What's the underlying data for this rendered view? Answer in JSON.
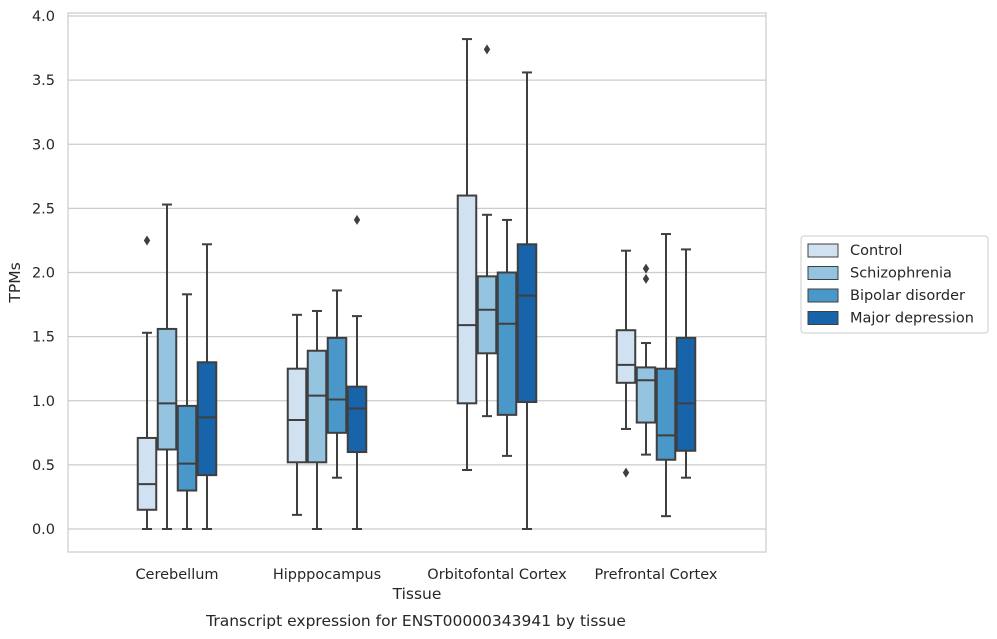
{
  "chart_data": {
    "type": "boxplot",
    "caption": "Transcript expression for ENST00000343941 by tissue",
    "xlabel": "Tissue",
    "ylabel": "TPMs",
    "ylim": [
      -0.18,
      4.02
    ],
    "yticks": [
      0.0,
      0.5,
      1.0,
      1.5,
      2.0,
      2.5,
      3.0,
      3.5,
      4.0
    ],
    "ytick_labels": [
      "0.0",
      "0.5",
      "1.0",
      "1.5",
      "2.0",
      "2.5",
      "3.0",
      "3.5",
      "4.0"
    ],
    "grid": true,
    "legend_position": "right",
    "categories": [
      "Cerebellum",
      "Hipppocampus",
      "Orbitofontal Cortex",
      "Prefrontal Cortex"
    ],
    "series": [
      {
        "name": "Control",
        "color": "#d0e1f2",
        "boxes": [
          {
            "whislo": 0.0,
            "q1": 0.15,
            "med": 0.35,
            "q3": 0.71,
            "whishi": 1.53,
            "fliers": [
              2.25
            ]
          },
          {
            "whislo": 0.11,
            "q1": 0.52,
            "med": 0.85,
            "q3": 1.25,
            "whishi": 1.67,
            "fliers": []
          },
          {
            "whislo": 0.46,
            "q1": 0.98,
            "med": 1.59,
            "q3": 2.6,
            "whishi": 3.82,
            "fliers": []
          },
          {
            "whislo": 0.78,
            "q1": 1.14,
            "med": 1.28,
            "q3": 1.55,
            "whishi": 2.17,
            "fliers": [
              0.44
            ]
          }
        ]
      },
      {
        "name": "Schizophrenia",
        "color": "#94c4df",
        "boxes": [
          {
            "whislo": 0.0,
            "q1": 0.62,
            "med": 0.98,
            "q3": 1.56,
            "whishi": 2.53,
            "fliers": []
          },
          {
            "whislo": 0.0,
            "q1": 0.52,
            "med": 1.04,
            "q3": 1.39,
            "whishi": 1.7,
            "fliers": []
          },
          {
            "whislo": 0.88,
            "q1": 1.37,
            "med": 1.71,
            "q3": 1.97,
            "whishi": 2.45,
            "fliers": [
              3.74
            ]
          },
          {
            "whislo": 0.58,
            "q1": 0.83,
            "med": 1.16,
            "q3": 1.26,
            "whishi": 1.45,
            "fliers": [
              2.03,
              1.95
            ]
          }
        ]
      },
      {
        "name": "Bipolar disorder",
        "color": "#4a98c9",
        "boxes": [
          {
            "whislo": 0.0,
            "q1": 0.3,
            "med": 0.51,
            "q3": 0.96,
            "whishi": 1.83,
            "fliers": []
          },
          {
            "whislo": 0.4,
            "q1": 0.75,
            "med": 1.01,
            "q3": 1.49,
            "whishi": 1.86,
            "fliers": []
          },
          {
            "whislo": 0.57,
            "q1": 0.89,
            "med": 1.6,
            "q3": 2.0,
            "whishi": 2.41,
            "fliers": []
          },
          {
            "whislo": 0.1,
            "q1": 0.54,
            "med": 0.73,
            "q3": 1.25,
            "whishi": 2.3,
            "fliers": []
          }
        ]
      },
      {
        "name": "Major depression",
        "color": "#1764ab",
        "boxes": [
          {
            "whislo": 0.0,
            "q1": 0.42,
            "med": 0.87,
            "q3": 1.3,
            "whishi": 2.22,
            "fliers": []
          },
          {
            "whislo": 0.0,
            "q1": 0.6,
            "med": 0.94,
            "q3": 1.11,
            "whishi": 1.66,
            "fliers": [
              2.41
            ]
          },
          {
            "whislo": 0.0,
            "q1": 0.99,
            "med": 1.82,
            "q3": 2.22,
            "whishi": 3.56,
            "fliers": []
          },
          {
            "whislo": 0.4,
            "q1": 0.61,
            "med": 0.98,
            "q3": 1.49,
            "whishi": 2.18,
            "fliers": []
          }
        ]
      }
    ]
  }
}
